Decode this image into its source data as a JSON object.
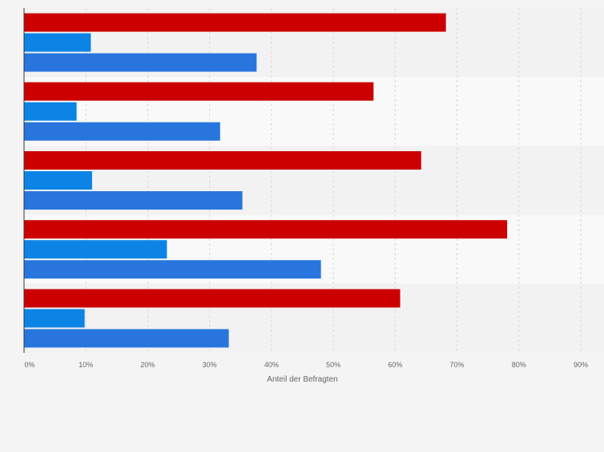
{
  "chart_data": {
    "type": "bar",
    "orientation": "horizontal",
    "categories": [
      "",
      "",
      "",
      "",
      ""
    ],
    "series": [
      {
        "values": [
          68.2,
          56.5,
          64.2,
          78.1,
          60.8
        ]
      },
      {
        "values": [
          10.8,
          8.5,
          11.0,
          23.1,
          9.8
        ]
      },
      {
        "values": [
          37.6,
          31.7,
          35.3,
          48.0,
          33.1
        ]
      }
    ],
    "colors": [
      "#cc0000",
      "#0b84e6",
      "#2876dd"
    ],
    "xlabel": "Anteil der Befragten",
    "xlim": [
      0,
      90
    ],
    "x_ticks": [
      0,
      10,
      20,
      30,
      40,
      50,
      60,
      70,
      80,
      90
    ],
    "x_tick_labels": [
      "0%",
      "10%",
      "20%",
      "30%",
      "40%",
      "50%",
      "60%",
      "70%",
      "80%",
      "90%"
    ],
    "grid": true,
    "legend": "none"
  }
}
